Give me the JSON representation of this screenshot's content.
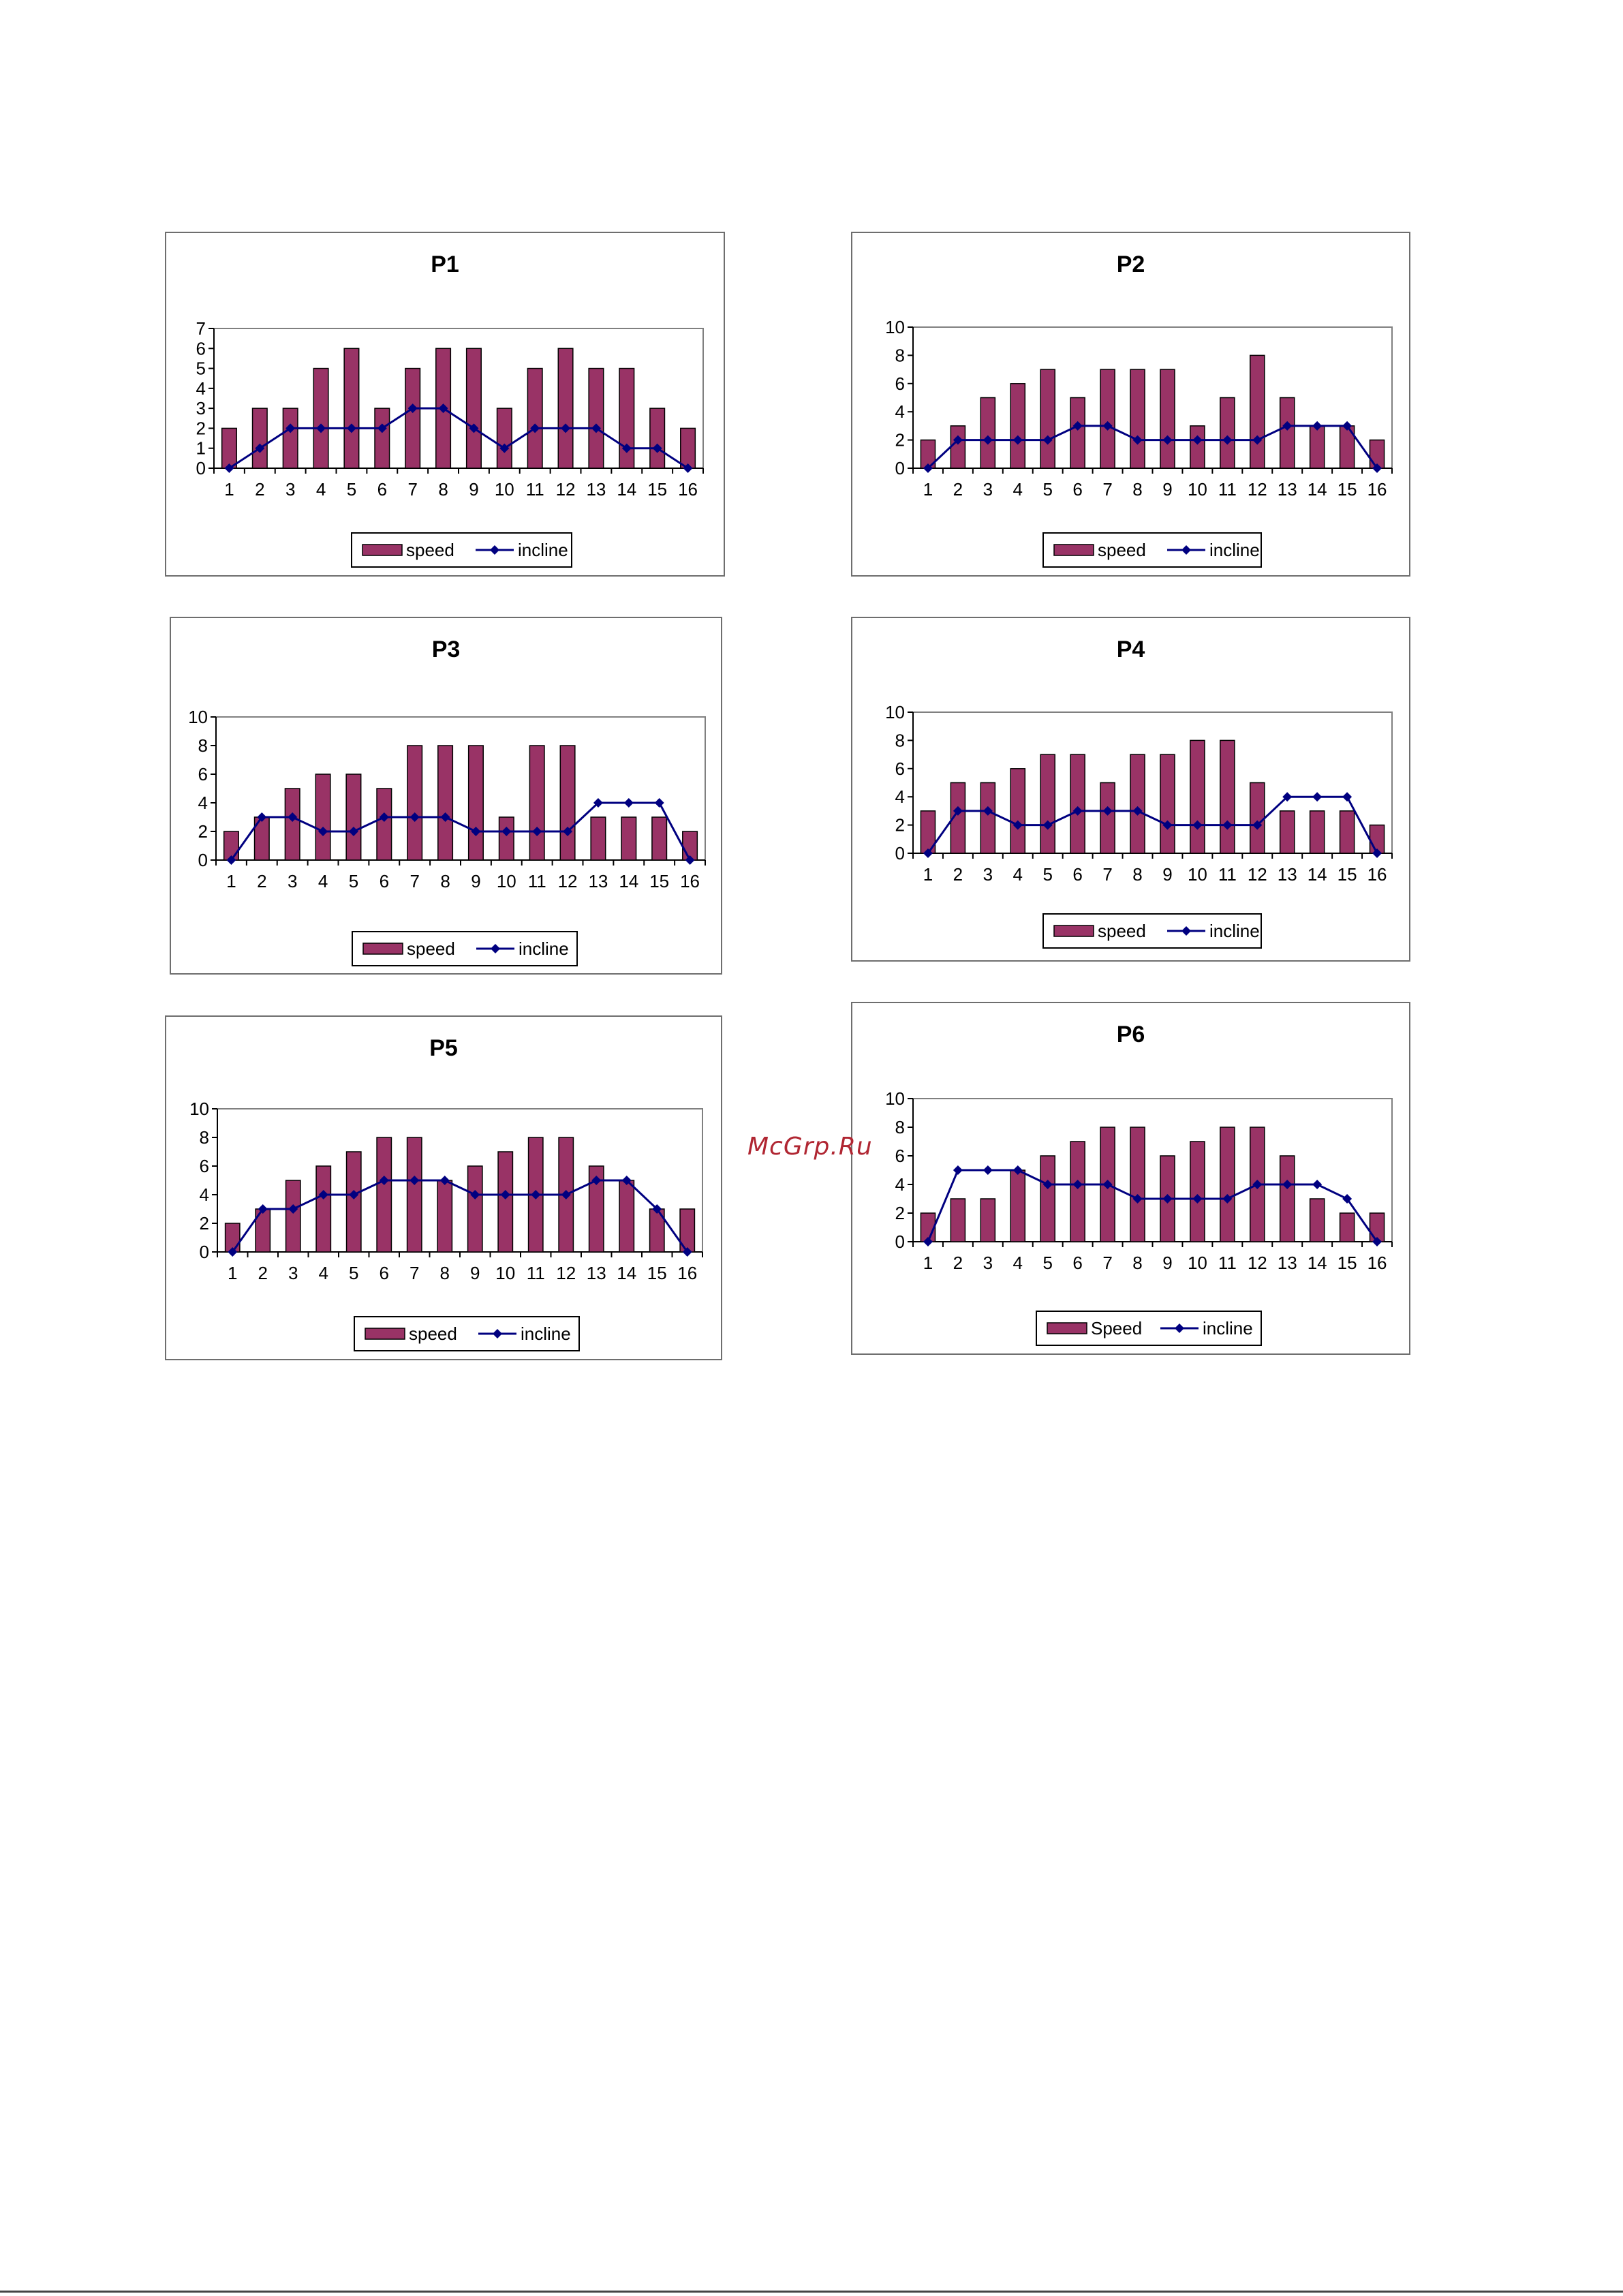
{
  "watermark": "McGrp.Ru",
  "colors": {
    "bar": "#993366",
    "line": "#000080",
    "frame": "#808080"
  },
  "chart_data": [
    {
      "id": "p1",
      "type": "bar",
      "title": "P1",
      "categories": [
        "1",
        "2",
        "3",
        "4",
        "5",
        "6",
        "7",
        "8",
        "9",
        "10",
        "11",
        "12",
        "13",
        "14",
        "15",
        "16"
      ],
      "ylim": [
        0,
        7
      ],
      "yticks": [
        0,
        1,
        2,
        3,
        4,
        5,
        6,
        7
      ],
      "series": [
        {
          "name": "speed",
          "type": "bar",
          "values": [
            2,
            3,
            3,
            5,
            6,
            3,
            5,
            6,
            6,
            3,
            5,
            6,
            5,
            5,
            3,
            2
          ]
        },
        {
          "name": "incline",
          "type": "line",
          "values": [
            0,
            1,
            2,
            2,
            2,
            2,
            3,
            3,
            2,
            1,
            2,
            2,
            2,
            1,
            1,
            0
          ]
        }
      ]
    },
    {
      "id": "p2",
      "type": "bar",
      "title": "P2",
      "categories": [
        "1",
        "2",
        "3",
        "4",
        "5",
        "6",
        "7",
        "8",
        "9",
        "10",
        "11",
        "12",
        "13",
        "14",
        "15",
        "16"
      ],
      "ylim": [
        0,
        10
      ],
      "yticks": [
        0,
        2,
        4,
        6,
        8,
        10
      ],
      "series": [
        {
          "name": "speed",
          "type": "bar",
          "values": [
            2,
            3,
            5,
            6,
            7,
            5,
            7,
            7,
            7,
            3,
            5,
            8,
            5,
            3,
            3,
            2
          ]
        },
        {
          "name": "incline",
          "type": "line",
          "values": [
            0,
            2,
            2,
            2,
            2,
            3,
            3,
            2,
            2,
            2,
            2,
            2,
            3,
            3,
            3,
            0
          ]
        }
      ]
    },
    {
      "id": "p3",
      "type": "bar",
      "title": "P3",
      "categories": [
        "1",
        "2",
        "3",
        "4",
        "5",
        "6",
        "7",
        "8",
        "9",
        "10",
        "11",
        "12",
        "13",
        "14",
        "15",
        "16"
      ],
      "ylim": [
        0,
        10
      ],
      "yticks": [
        0,
        2,
        4,
        6,
        8,
        10
      ],
      "series": [
        {
          "name": "speed",
          "type": "bar",
          "values": [
            2,
            3,
            5,
            6,
            6,
            5,
            8,
            8,
            8,
            3,
            8,
            8,
            3,
            3,
            3,
            2
          ]
        },
        {
          "name": "incline",
          "type": "line",
          "values": [
            0,
            3,
            3,
            2,
            2,
            3,
            3,
            3,
            2,
            2,
            2,
            2,
            4,
            4,
            4,
            0
          ]
        }
      ]
    },
    {
      "id": "p4",
      "type": "bar",
      "title": "P4",
      "categories": [
        "1",
        "2",
        "3",
        "4",
        "5",
        "6",
        "7",
        "8",
        "9",
        "10",
        "11",
        "12",
        "13",
        "14",
        "15",
        "16"
      ],
      "ylim": [
        0,
        10
      ],
      "yticks": [
        0,
        2,
        4,
        6,
        8,
        10
      ],
      "series": [
        {
          "name": "speed",
          "type": "bar",
          "values": [
            3,
            5,
            5,
            6,
            7,
            7,
            5,
            7,
            7,
            8,
            8,
            5,
            3,
            3,
            3,
            2
          ]
        },
        {
          "name": "incline",
          "type": "line",
          "values": [
            0,
            3,
            3,
            2,
            2,
            3,
            3,
            3,
            2,
            2,
            2,
            2,
            4,
            4,
            4,
            0
          ]
        }
      ]
    },
    {
      "id": "p5",
      "type": "bar",
      "title": "P5",
      "categories": [
        "1",
        "2",
        "3",
        "4",
        "5",
        "6",
        "7",
        "8",
        "9",
        "10",
        "11",
        "12",
        "13",
        "14",
        "15",
        "16"
      ],
      "ylim": [
        0,
        10
      ],
      "yticks": [
        0,
        2,
        4,
        6,
        8,
        10
      ],
      "series": [
        {
          "name": "speed",
          "type": "bar",
          "values": [
            2,
            3,
            5,
            6,
            7,
            8,
            8,
            5,
            6,
            7,
            8,
            8,
            6,
            5,
            3,
            3
          ]
        },
        {
          "name": "incline",
          "type": "line",
          "values": [
            0,
            3,
            3,
            4,
            4,
            5,
            5,
            5,
            4,
            4,
            4,
            4,
            5,
            5,
            3,
            0
          ]
        }
      ]
    },
    {
      "id": "p6",
      "type": "bar",
      "title": "P6",
      "categories": [
        "1",
        "2",
        "3",
        "4",
        "5",
        "6",
        "7",
        "8",
        "9",
        "10",
        "11",
        "12",
        "13",
        "14",
        "15",
        "16"
      ],
      "ylim": [
        0,
        10
      ],
      "yticks": [
        0,
        2,
        4,
        6,
        8,
        10
      ],
      "series": [
        {
          "name": "Speed",
          "type": "bar",
          "values": [
            2,
            3,
            3,
            5,
            6,
            7,
            8,
            8,
            6,
            7,
            8,
            8,
            6,
            3,
            2,
            2
          ]
        },
        {
          "name": "incline",
          "type": "line",
          "values": [
            0,
            5,
            5,
            5,
            4,
            4,
            4,
            3,
            3,
            3,
            3,
            4,
            4,
            4,
            3,
            0
          ]
        }
      ]
    }
  ]
}
